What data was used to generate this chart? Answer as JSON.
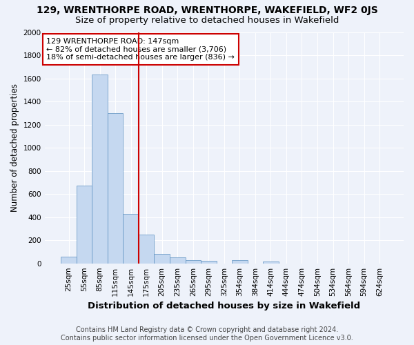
{
  "title": "129, WRENTHORPE ROAD, WRENTHORPE, WAKEFIELD, WF2 0JS",
  "subtitle": "Size of property relative to detached houses in Wakefield",
  "xlabel": "Distribution of detached houses by size in Wakefield",
  "ylabel": "Number of detached properties",
  "categories": [
    "25sqm",
    "55sqm",
    "85sqm",
    "115sqm",
    "145sqm",
    "175sqm",
    "205sqm",
    "235sqm",
    "265sqm",
    "295sqm",
    "325sqm",
    "354sqm",
    "384sqm",
    "414sqm",
    "444sqm",
    "474sqm",
    "504sqm",
    "534sqm",
    "564sqm",
    "594sqm",
    "624sqm"
  ],
  "values": [
    60,
    675,
    1635,
    1300,
    430,
    250,
    80,
    50,
    25,
    20,
    0,
    30,
    0,
    15,
    0,
    0,
    0,
    0,
    0,
    0,
    0
  ],
  "bar_color": "#c5d8f0",
  "bar_edge_color": "#5a8fc0",
  "vline_x_index": 4,
  "vline_color": "#cc0000",
  "ylim": [
    0,
    2000
  ],
  "yticks": [
    0,
    200,
    400,
    600,
    800,
    1000,
    1200,
    1400,
    1600,
    1800,
    2000
  ],
  "annotation_box_text_line1": "129 WRENTHORPE ROAD: 147sqm",
  "annotation_box_text_line2": "← 82% of detached houses are smaller (3,706)",
  "annotation_box_text_line3": "18% of semi-detached houses are larger (836) →",
  "annotation_box_color": "#cc0000",
  "footer_line1": "Contains HM Land Registry data © Crown copyright and database right 2024.",
  "footer_line2": "Contains public sector information licensed under the Open Government Licence v3.0.",
  "background_color": "#eef2fa",
  "grid_color": "#ffffff",
  "title_fontsize": 10,
  "subtitle_fontsize": 9.5,
  "xlabel_fontsize": 9.5,
  "ylabel_fontsize": 8.5,
  "tick_fontsize": 7.5,
  "annotation_fontsize": 8,
  "footer_fontsize": 7
}
